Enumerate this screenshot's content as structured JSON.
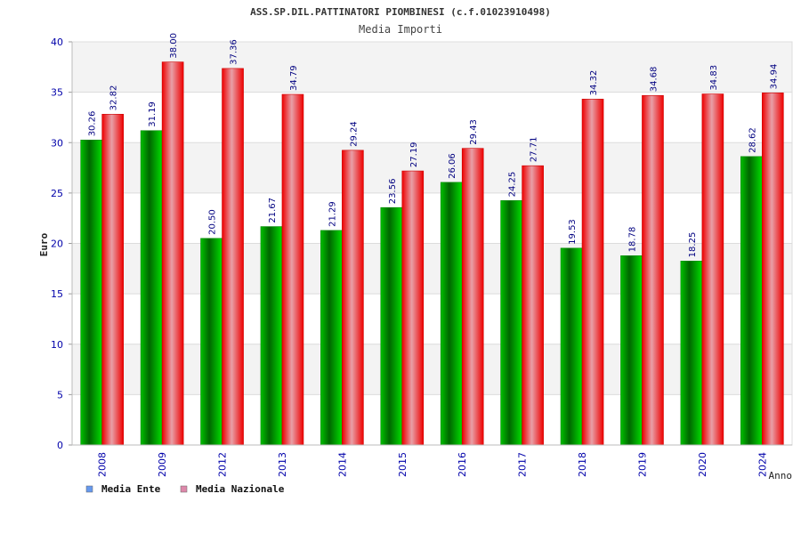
{
  "chart_data": {
    "type": "bar",
    "title": "ASS.SP.DIL.PATTINATORI PIOMBINESI (c.f.01023910498)",
    "subtitle": "Media Importi",
    "ylabel": "Euro",
    "xlabel": "Anno",
    "ylim": [
      0,
      40
    ],
    "yticks": [
      0,
      5,
      10,
      15,
      20,
      25,
      30,
      35,
      40
    ],
    "grid": true,
    "legend_position": "bottom-left",
    "categories": [
      "2008",
      "2009",
      "2012",
      "2013",
      "2014",
      "2015",
      "2016",
      "2017",
      "2018",
      "2019",
      "2020",
      "2024"
    ],
    "series": [
      {
        "name": "Media Ente",
        "color": "#00aa00",
        "legend_color": "#6699ee",
        "values": [
          30.26,
          31.19,
          20.5,
          21.67,
          21.29,
          23.56,
          26.06,
          24.25,
          19.53,
          18.78,
          18.25,
          28.62
        ],
        "labels": [
          "30.26",
          "31.19",
          "20.50",
          "21.67",
          "21.29",
          "23.56",
          "26.06",
          "24.25",
          "19.53",
          "18.78",
          "18.25",
          "28.62"
        ]
      },
      {
        "name": "Media Nazionale",
        "color": "#ee1111",
        "legend_color": "#dd88aa",
        "values": [
          32.82,
          38.0,
          37.36,
          34.79,
          29.24,
          27.19,
          29.43,
          27.71,
          34.32,
          34.68,
          34.83,
          34.94
        ],
        "labels": [
          "32.82",
          "38.00",
          "37.36",
          "34.79",
          "29.24",
          "27.19",
          "29.43",
          "27.71",
          "34.32",
          "34.68",
          "34.83",
          "34.94"
        ]
      }
    ]
  }
}
